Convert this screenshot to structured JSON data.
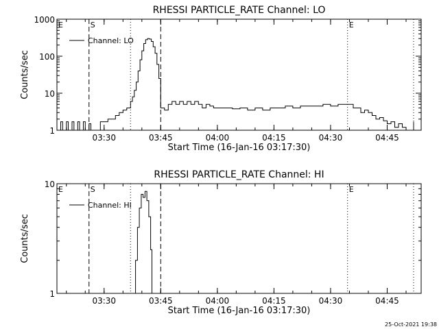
{
  "timestamp": "25-Oct-2021 19:38",
  "chart_data": [
    {
      "type": "line",
      "title": "RHESSI PARTICLE_RATE Channel: LO",
      "xlabel": "Start Time (16-Jan-16 03:17:30)",
      "ylabel": "Counts/sec",
      "yscale": "log",
      "x_unit": "UT time of day",
      "xlim": [
        "03:17:30",
        "04:54:00"
      ],
      "ylim": [
        1,
        1000
      ],
      "x_ticks": [
        "03:30",
        "03:45",
        "04:00",
        "04:15",
        "04:30",
        "04:45"
      ],
      "y_ticks": [
        "1",
        "10",
        "100",
        "1000"
      ],
      "legend": {
        "label": "Channel: LO",
        "placement": "top-left"
      },
      "markers": [
        {
          "label": "E",
          "time": "03:17:30",
          "style": "dotted"
        },
        {
          "label": "S",
          "time": "03:26:00",
          "style": "dashed"
        },
        {
          "label": "",
          "time": "03:37:00",
          "style": "dotted"
        },
        {
          "label": "",
          "time": "03:45:00",
          "style": "dashed"
        },
        {
          "label": "E",
          "time": "04:34:30",
          "style": "dotted"
        },
        {
          "label": "",
          "time": "04:52:00",
          "style": "dotted"
        }
      ],
      "series": [
        {
          "name": "Channel: LO",
          "x": [
            "03:17:30",
            "03:18:30",
            "03:19:00",
            "03:20:00",
            "03:20:30",
            "03:21:30",
            "03:22:00",
            "03:23:00",
            "03:23:30",
            "03:24:30",
            "03:25:00",
            "03:26:00",
            "03:26:30",
            "03:27:30",
            "03:28:00",
            "03:29:00",
            "03:30:00",
            "03:31:00",
            "03:32:00",
            "03:33:00",
            "03:34:00",
            "03:35:00",
            "03:36:00",
            "03:37:00",
            "03:37:30",
            "03:38:00",
            "03:38:30",
            "03:39:00",
            "03:39:30",
            "03:40:00",
            "03:40:30",
            "03:41:00",
            "03:41:30",
            "03:42:00",
            "03:42:30",
            "03:43:00",
            "03:43:30",
            "03:44:00",
            "03:44:30",
            "03:45:00",
            "03:46:00",
            "03:47:00",
            "03:48:00",
            "03:49:00",
            "03:50:00",
            "03:51:00",
            "03:52:00",
            "03:53:00",
            "03:54:00",
            "03:55:00",
            "03:56:00",
            "03:57:00",
            "03:58:00",
            "03:59:00",
            "04:00:00",
            "04:02:00",
            "04:04:00",
            "04:06:00",
            "04:08:00",
            "04:10:00",
            "04:12:00",
            "04:14:00",
            "04:16:00",
            "04:18:00",
            "04:20:00",
            "04:22:00",
            "04:24:00",
            "04:26:00",
            "04:28:00",
            "04:30:00",
            "04:32:00",
            "04:34:00",
            "04:36:00",
            "04:38:00",
            "04:39:00",
            "04:40:00",
            "04:41:00",
            "04:42:00",
            "04:43:00",
            "04:44:00",
            "04:45:00",
            "04:46:00",
            "04:47:00",
            "04:48:00",
            "04:49:00",
            "04:50:00",
            "04:51:00",
            "04:52:00"
          ],
          "y": [
            1,
            1.7,
            1,
            1.7,
            1,
            1.7,
            1,
            1.7,
            1,
            1.7,
            1,
            1.5,
            1,
            1,
            1,
            1.7,
            1.7,
            2,
            2,
            2.5,
            3,
            3.5,
            4,
            6,
            8,
            12,
            20,
            40,
            80,
            140,
            220,
            280,
            300,
            290,
            250,
            180,
            120,
            60,
            25,
            4,
            3.5,
            5,
            6,
            5,
            6,
            5,
            6,
            5,
            6,
            5,
            4,
            5,
            4.5,
            4,
            4,
            4,
            3.8,
            4,
            3.5,
            4,
            3.5,
            4,
            4,
            4.5,
            4,
            4.5,
            4.5,
            4.5,
            5,
            4.5,
            5,
            5,
            4,
            3,
            3.5,
            3,
            2.5,
            2,
            2.2,
            1.8,
            1.5,
            1.7,
            1.2,
            1.5,
            1.2,
            1,
            1,
            1.7
          ]
        }
      ]
    },
    {
      "type": "line",
      "title": "RHESSI PARTICLE_RATE Channel: HI",
      "xlabel": "Start Time (16-Jan-16 03:17:30)",
      "ylabel": "Counts/sec",
      "yscale": "log",
      "x_unit": "UT time of day",
      "xlim": [
        "03:17:30",
        "04:54:00"
      ],
      "ylim": [
        1,
        10
      ],
      "x_ticks": [
        "03:30",
        "03:45",
        "04:00",
        "04:15",
        "04:30",
        "04:45"
      ],
      "y_ticks": [
        "1",
        "10"
      ],
      "legend": {
        "label": "Channel: HI",
        "placement": "top-left"
      },
      "markers": [
        {
          "label": "E",
          "time": "03:17:30",
          "style": "dotted"
        },
        {
          "label": "S",
          "time": "03:26:00",
          "style": "dashed"
        },
        {
          "label": "",
          "time": "03:37:00",
          "style": "dotted"
        },
        {
          "label": "",
          "time": "03:45:00",
          "style": "dashed"
        },
        {
          "label": "E",
          "time": "04:34:30",
          "style": "dotted"
        },
        {
          "label": "",
          "time": "04:52:00",
          "style": "dotted"
        }
      ],
      "series": [
        {
          "name": "Channel: HI",
          "x": [
            "03:37:50",
            "03:38:20",
            "03:38:50",
            "03:39:20",
            "03:39:50",
            "03:40:20",
            "03:40:50",
            "03:41:20",
            "03:41:50",
            "03:42:20",
            "03:42:40"
          ],
          "y": [
            1,
            2,
            4,
            6,
            8,
            7.5,
            8.5,
            7,
            5,
            2.5,
            1
          ]
        }
      ]
    }
  ]
}
